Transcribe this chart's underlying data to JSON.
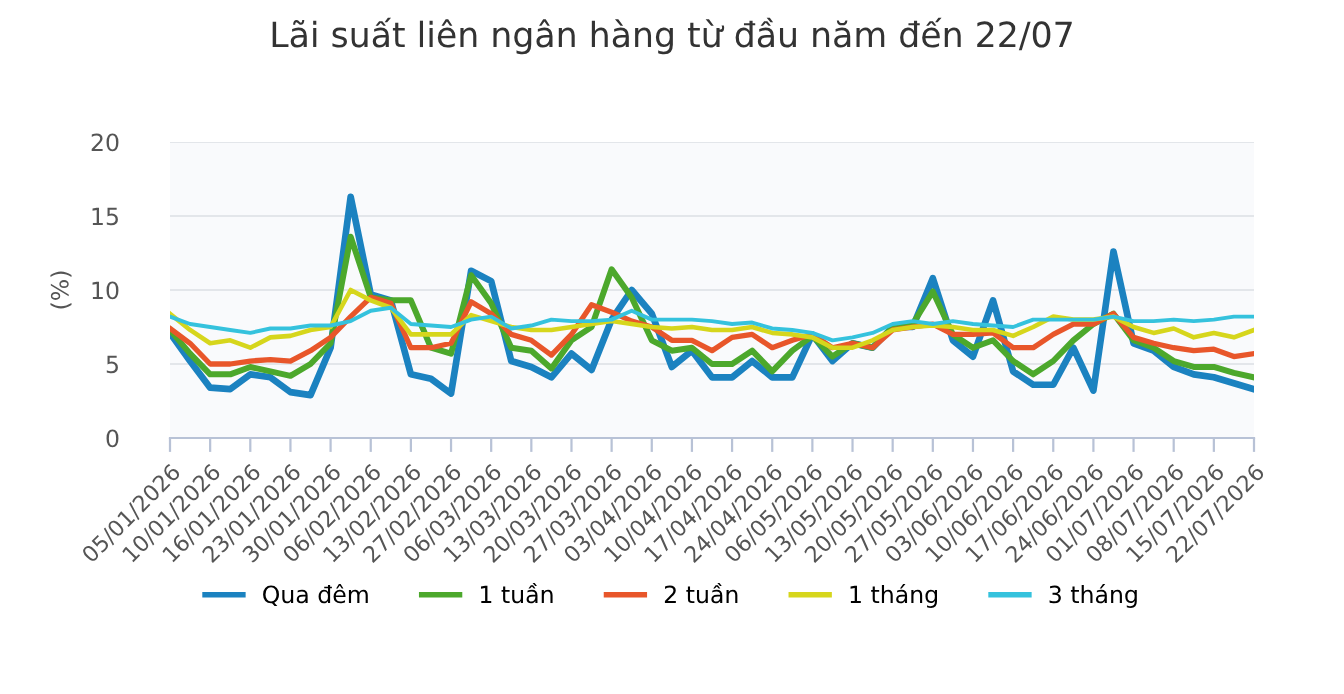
{
  "chart_data": {
    "type": "line",
    "title": "Lãi suất liên ngân hàng từ đầu năm đến 22/07",
    "ylabel": "(%)",
    "categories": [
      "05/01/2026",
      null,
      "10/01/2026",
      null,
      "16/01/2026",
      null,
      "23/01/2026",
      null,
      "30/01/2026",
      null,
      "06/02/2026",
      null,
      "13/02/2026",
      null,
      "27/02/2026",
      null,
      "06/03/2026",
      null,
      "13/03/2026",
      null,
      "20/03/2026",
      null,
      "27/03/2026",
      null,
      "03/04/2026",
      null,
      "10/04/2026",
      null,
      "17/04/2026",
      null,
      "24/04/2026",
      null,
      "06/05/2026",
      null,
      "13/05/2026",
      null,
      "20/05/2026",
      null,
      "27/05/2026",
      null,
      "03/06/2026",
      null,
      "10/06/2026",
      null,
      "17/06/2026",
      null,
      "24/06/2026",
      null,
      "01/07/2026",
      null,
      "08/07/2026",
      null,
      "15/07/2026",
      null,
      "22/07/2026"
    ],
    "series": [
      {
        "name": "Qua đêm",
        "color": "#1b82c0",
        "values": [
          7.1,
          5.2,
          3.4,
          3.3,
          4.3,
          4.1,
          3.1,
          2.9,
          6.1,
          16.3,
          9.7,
          9.3,
          4.3,
          4.0,
          3.0,
          11.3,
          10.6,
          5.2,
          4.8,
          4.1,
          5.7,
          4.6,
          8.0,
          10.0,
          8.4,
          4.8,
          5.9,
          4.1,
          4.1,
          5.2,
          4.1,
          4.1,
          7.0,
          5.2,
          6.4,
          6.1,
          7.5,
          7.5,
          10.8,
          6.6,
          5.5,
          9.3,
          4.5,
          3.6,
          3.6,
          6.1,
          3.2,
          12.6,
          6.4,
          5.9,
          4.8,
          4.3,
          4.1,
          3.7,
          3.3
        ]
      },
      {
        "name": "1 tuần",
        "color": "#4ca82c",
        "values": [
          7.3,
          5.7,
          4.3,
          4.3,
          4.8,
          4.5,
          4.2,
          5.0,
          6.4,
          13.6,
          9.5,
          9.3,
          9.3,
          6.1,
          5.7,
          11.0,
          9.1,
          6.1,
          5.9,
          4.7,
          6.6,
          7.5,
          11.4,
          9.5,
          6.6,
          5.9,
          6.1,
          5.0,
          5.0,
          5.9,
          4.5,
          5.9,
          6.9,
          5.5,
          6.4,
          6.1,
          7.5,
          7.7,
          9.9,
          7.0,
          6.1,
          6.6,
          5.2,
          4.3,
          5.2,
          6.6,
          7.7,
          8.4,
          6.6,
          6.1,
          5.2,
          4.8,
          4.8,
          4.4,
          4.1
        ]
      },
      {
        "name": "2 tuần",
        "color": "#e8562a",
        "values": [
          7.4,
          6.4,
          5.0,
          5.0,
          5.2,
          5.3,
          5.2,
          5.9,
          6.8,
          8.2,
          9.5,
          9.1,
          6.1,
          6.1,
          6.4,
          9.2,
          8.4,
          7.0,
          6.6,
          5.6,
          7.0,
          9.0,
          8.5,
          7.9,
          7.5,
          6.6,
          6.6,
          5.9,
          6.8,
          7.0,
          6.1,
          6.6,
          7.0,
          6.1,
          6.4,
          6.1,
          7.3,
          7.5,
          7.7,
          7.0,
          7.0,
          7.1,
          6.1,
          6.1,
          7.0,
          7.7,
          7.7,
          8.4,
          6.8,
          6.4,
          6.1,
          5.9,
          6.0,
          5.5,
          5.7
        ]
      },
      {
        "name": "1 tháng",
        "color": "#d6d61c",
        "values": [
          8.4,
          7.3,
          6.4,
          6.6,
          6.1,
          6.8,
          6.9,
          7.3,
          7.5,
          10.0,
          9.3,
          8.8,
          7.0,
          7.0,
          7.0,
          8.3,
          7.9,
          7.5,
          7.3,
          7.3,
          7.5,
          7.7,
          7.9,
          7.7,
          7.5,
          7.4,
          7.5,
          7.3,
          7.3,
          7.5,
          7.1,
          7.0,
          6.8,
          6.1,
          6.1,
          6.6,
          7.3,
          7.5,
          7.6,
          7.5,
          7.3,
          7.3,
          6.9,
          7.5,
          8.2,
          8.0,
          8.0,
          8.2,
          7.5,
          7.1,
          7.4,
          6.8,
          7.1,
          6.8,
          7.3
        ]
      },
      {
        "name": "3 tháng",
        "color": "#35c2dd",
        "values": [
          8.2,
          7.7,
          7.5,
          7.3,
          7.1,
          7.4,
          7.4,
          7.6,
          7.6,
          7.9,
          8.6,
          8.8,
          7.7,
          7.6,
          7.5,
          8.0,
          8.2,
          7.4,
          7.6,
          8.0,
          7.9,
          7.9,
          8.0,
          8.6,
          8.0,
          8.0,
          8.0,
          7.9,
          7.7,
          7.8,
          7.4,
          7.3,
          7.1,
          6.6,
          6.8,
          7.1,
          7.7,
          7.9,
          7.7,
          7.9,
          7.7,
          7.6,
          7.5,
          8.0,
          8.0,
          8.0,
          8.0,
          8.2,
          7.9,
          7.9,
          8.0,
          7.9,
          8.0,
          8.2,
          8.2
        ]
      }
    ],
    "ylim": [
      0,
      20
    ],
    "yticks": [
      0,
      5,
      10,
      15,
      20
    ],
    "grid": "y",
    "legend": "bottom",
    "marker": "none",
    "line_style": "solid"
  }
}
